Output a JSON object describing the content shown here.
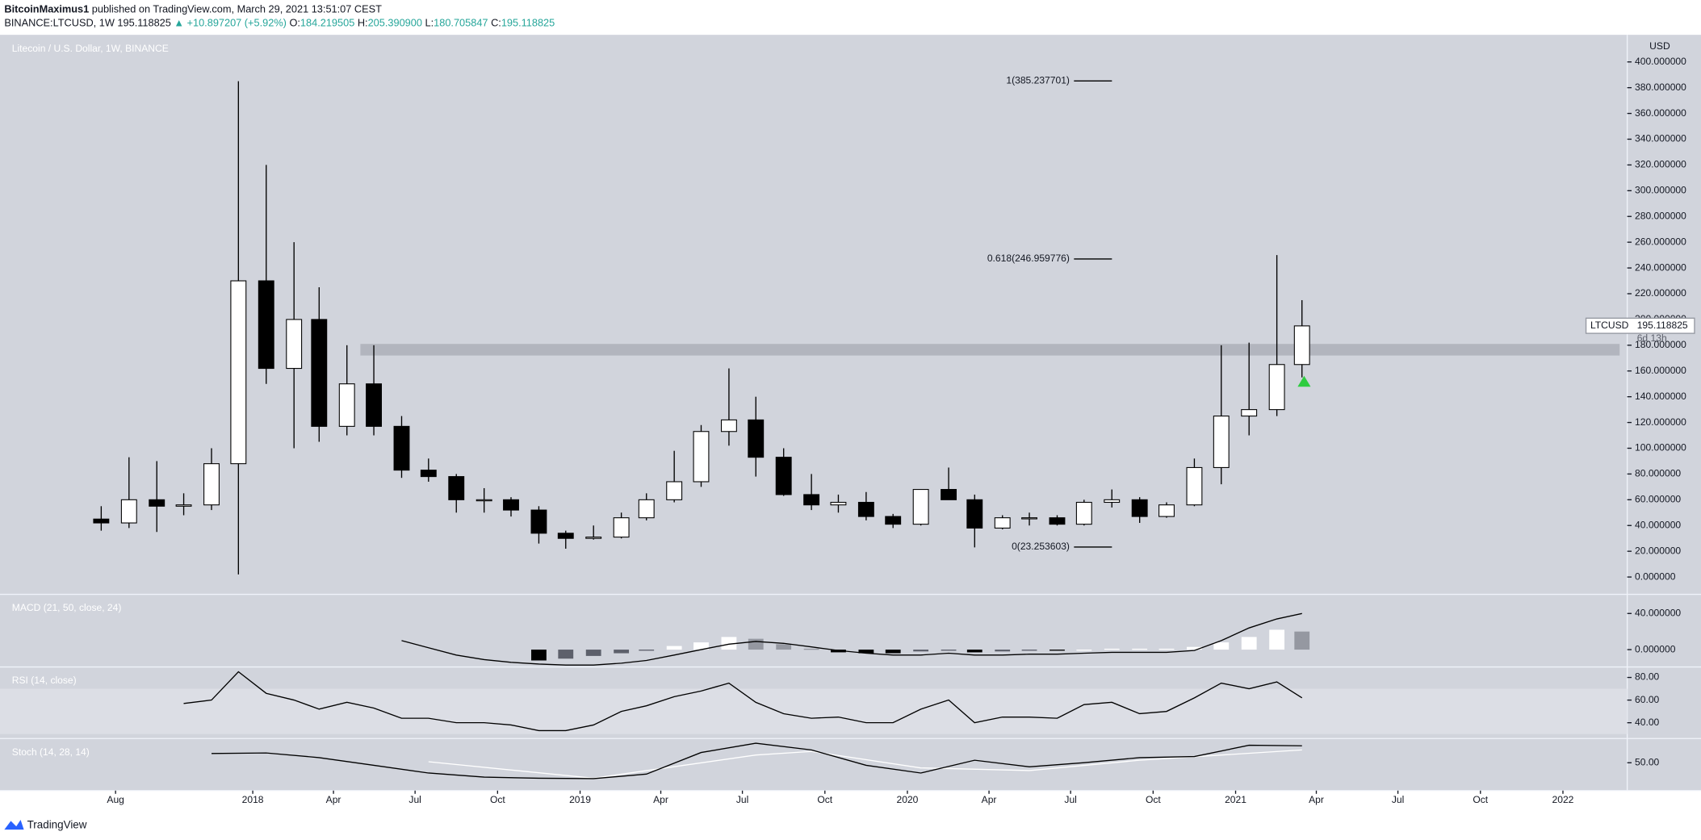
{
  "header": {
    "publisher": "BitcoinMaximus1",
    "published": "published on TradingView.com, March 29, 2021 13:51:07 CEST",
    "symbol": "BINANCE:LTCUSD, 1W",
    "last": "195.118825",
    "change": "▲ +10.897207 (+5.92%)",
    "ohlc": [
      {
        "label": "O:",
        "value": "184.219505"
      },
      {
        "label": "H:",
        "value": "205.390900"
      },
      {
        "label": "L:",
        "value": "180.705847"
      },
      {
        "label": "C:",
        "value": "195.118825"
      }
    ]
  },
  "footer": {
    "brand": "TradingView"
  },
  "chart_data": {
    "type": "candlestick",
    "title": "Litecoin / U.S. Dollar, 1W, BINANCE",
    "unit": "USD",
    "x": [
      "2017-07",
      "2017-08",
      "2017-09",
      "2017-10",
      "2017-11",
      "2017-12",
      "2018-01",
      "2018-02",
      "2018-03",
      "2018-04",
      "2018-05",
      "2018-06",
      "2018-07",
      "2018-08",
      "2018-09",
      "2018-10",
      "2018-11",
      "2018-12",
      "2019-01",
      "2019-02",
      "2019-03",
      "2019-04",
      "2019-05",
      "2019-06",
      "2019-07",
      "2019-08",
      "2019-09",
      "2019-10",
      "2019-11",
      "2019-12",
      "2020-01",
      "2020-02",
      "2020-03",
      "2020-04",
      "2020-05",
      "2020-06",
      "2020-07",
      "2020-08",
      "2020-09",
      "2020-10",
      "2020-11",
      "2020-12",
      "2021-01",
      "2021-02",
      "2021-03"
    ],
    "open": [
      45,
      42,
      60,
      55,
      56,
      88,
      230,
      162,
      200,
      117,
      150,
      117,
      83,
      78,
      60,
      60,
      52,
      34,
      30,
      31,
      46,
      60,
      74,
      113,
      122,
      93,
      64,
      56,
      58,
      47,
      41,
      68,
      60,
      38,
      46,
      46,
      41,
      58,
      60,
      47,
      56,
      85,
      125,
      130,
      165
    ],
    "high": [
      55,
      93,
      90,
      65,
      100,
      385,
      320,
      260,
      225,
      180,
      180,
      125,
      92,
      80,
      69,
      62,
      55,
      36,
      40,
      50,
      65,
      98,
      118,
      162,
      140,
      100,
      80,
      64,
      66,
      49,
      68,
      85,
      64,
      48,
      50,
      48,
      60,
      68,
      62,
      58,
      92,
      180,
      182,
      250,
      215
    ],
    "low": [
      36,
      38,
      35,
      48,
      52,
      2,
      150,
      100,
      105,
      110,
      110,
      77,
      74,
      50,
      50,
      47,
      26,
      22,
      29,
      30,
      44,
      58,
      70,
      102,
      78,
      63,
      52,
      50,
      44,
      38,
      40,
      60,
      23,
      37,
      40,
      40,
      40,
      54,
      42,
      46,
      55,
      72,
      110,
      125,
      155
    ],
    "close": [
      42,
      60,
      55,
      56,
      88,
      230,
      162,
      200,
      117,
      150,
      117,
      83,
      78,
      60,
      60,
      52,
      34,
      30,
      31,
      46,
      60,
      74,
      113,
      122,
      93,
      64,
      56,
      58,
      47,
      41,
      68,
      60,
      38,
      46,
      46,
      41,
      58,
      60,
      47,
      56,
      85,
      125,
      130,
      165,
      195
    ],
    "colors": {
      "up": "#ffffff",
      "down": "#000000",
      "wick": "#000000"
    },
    "ylim": [
      -12.6,
      420.2
    ],
    "yticks": [
      {
        "value": 0,
        "label": "0.000000"
      },
      {
        "value": 20,
        "label": "20.000000"
      },
      {
        "value": 40,
        "label": "40.000000"
      },
      {
        "value": 60,
        "label": "60.000000"
      },
      {
        "value": 80,
        "label": "80.000000"
      },
      {
        "value": 100,
        "label": "100.000000"
      },
      {
        "value": 120,
        "label": "120.000000"
      },
      {
        "value": 140,
        "label": "140.000000"
      },
      {
        "value": 160,
        "label": "160.000000"
      },
      {
        "value": 180,
        "label": "180.000000"
      },
      {
        "value": 200,
        "label": "200.000000"
      },
      {
        "value": 220,
        "label": "220.000000"
      },
      {
        "value": 240,
        "label": "240.000000"
      },
      {
        "value": 260,
        "label": "260.000000"
      },
      {
        "value": 280,
        "label": "280.000000"
      },
      {
        "value": 300,
        "label": "300.000000"
      },
      {
        "value": 320,
        "label": "320.000000"
      },
      {
        "value": 340,
        "label": "340.000000"
      },
      {
        "value": 360,
        "label": "360.000000"
      },
      {
        "value": 380,
        "label": "380.000000"
      },
      {
        "value": 400,
        "label": "400.000000"
      }
    ],
    "xticks": [
      {
        "value": "2017-08",
        "label": "Aug"
      },
      {
        "value": "2018-01",
        "label": "2018"
      },
      {
        "value": "2018-04",
        "label": "Apr"
      },
      {
        "value": "2018-07",
        "label": "Jul"
      },
      {
        "value": "2018-10",
        "label": "Oct"
      },
      {
        "value": "2019-01",
        "label": "2019"
      },
      {
        "value": "2019-04",
        "label": "Apr"
      },
      {
        "value": "2019-07",
        "label": "Jul"
      },
      {
        "value": "2019-10",
        "label": "Oct"
      },
      {
        "value": "2020-01",
        "label": "2020"
      },
      {
        "value": "2020-04",
        "label": "Apr"
      },
      {
        "value": "2020-07",
        "label": "Jul"
      },
      {
        "value": "2020-10",
        "label": "Oct"
      },
      {
        "value": "2021-01",
        "label": "2021"
      },
      {
        "value": "2021-04",
        "label": "Apr"
      },
      {
        "value": "2021-07",
        "label": "Jul"
      },
      {
        "value": "2021-10",
        "label": "Oct"
      },
      {
        "value": "2022-01",
        "label": "2022"
      }
    ],
    "zone": {
      "from": "2018-05",
      "low": 172,
      "high": 181,
      "color": "#b2b5be"
    },
    "fib": [
      {
        "label": "1(385.237701)",
        "value": 385.237701
      },
      {
        "label": "0.618(246.959776)",
        "value": 246.959776
      },
      {
        "label": "0(23.253603)",
        "value": 23.253603
      }
    ],
    "marker": {
      "x": "2021-03",
      "value": 152,
      "color": "#2ecc40"
    },
    "price_tag": {
      "symbol": "LTCUSD",
      "value": 195.118825,
      "label": "195.118825",
      "countdown": "6d 13h"
    },
    "indicators": [
      {
        "title": "MACD (21, 50, close, 24)",
        "ylim": [
          -18,
          60
        ],
        "yticks": [
          {
            "value": 40,
            "label": "40.000000"
          },
          {
            "value": 0,
            "label": "0.000000"
          }
        ],
        "series": [
          {
            "style": "histogram",
            "colors": {
              "pos_up": "#ffffff",
              "pos_down": "#9598a1",
              "neg_down": "#000000",
              "neg_up": "#5d606b"
            },
            "x": [
              "2018-11",
              "2018-12",
              "2019-01",
              "2019-02",
              "2019-03",
              "2019-04",
              "2019-05",
              "2019-06",
              "2019-07",
              "2019-08",
              "2019-09",
              "2019-10",
              "2019-11",
              "2019-12",
              "2020-01",
              "2020-02",
              "2020-03",
              "2020-04",
              "2020-05",
              "2020-06",
              "2020-07",
              "2020-08",
              "2020-09",
              "2020-10",
              "2020-11",
              "2020-12",
              "2021-01",
              "2021-02",
              "2021-03"
            ],
            "values": [
              -12,
              -10,
              -7,
              -4,
              -1,
              4,
              8,
              14,
              12,
              6,
              1,
              -3,
              -4,
              -4,
              -2,
              -1,
              -3,
              -2,
              -1,
              -1,
              0,
              1,
              1,
              1,
              3,
              8,
              14,
              22,
              20
            ]
          },
          {
            "style": "line",
            "color": "#000000",
            "x": [
              "2018-06",
              "2018-07",
              "2018-08",
              "2018-09",
              "2018-10",
              "2018-11",
              "2018-12",
              "2019-01",
              "2019-02",
              "2019-03",
              "2019-04",
              "2019-05",
              "2019-06",
              "2019-07",
              "2019-08",
              "2019-09",
              "2019-10",
              "2019-11",
              "2019-12",
              "2020-01",
              "2020-02",
              "2020-03",
              "2020-04",
              "2020-05",
              "2020-06",
              "2020-07",
              "2020-08",
              "2020-09",
              "2020-10",
              "2020-11",
              "2020-12",
              "2021-01",
              "2021-02",
              "2021-03"
            ],
            "values": [
              10,
              2,
              -6,
              -11,
              -14,
              -16,
              -17,
              -17,
              -15,
              -12,
              -6,
              0,
              6,
              9,
              7,
              3,
              -1,
              -4,
              -6,
              -6,
              -4,
              -6,
              -6,
              -5,
              -5,
              -4,
              -3,
              -3,
              -3,
              -1,
              10,
              24,
              34,
              40
            ]
          }
        ]
      },
      {
        "title": "RSI (14, close)",
        "ylim": [
          27,
          88.3
        ],
        "band": [
          30,
          70
        ],
        "yticks": [
          {
            "value": 80,
            "label": "80.00"
          },
          {
            "value": 60,
            "label": "60.00"
          },
          {
            "value": 40,
            "label": "40.00"
          }
        ],
        "series": [
          {
            "style": "line",
            "color": "#000000",
            "x": [
              "2017-10",
              "2017-11",
              "2017-12",
              "2018-01",
              "2018-02",
              "2018-03",
              "2018-04",
              "2018-05",
              "2018-06",
              "2018-07",
              "2018-08",
              "2018-09",
              "2018-10",
              "2018-11",
              "2018-12",
              "2019-01",
              "2019-02",
              "2019-03",
              "2019-04",
              "2019-05",
              "2019-06",
              "2019-07",
              "2019-08",
              "2019-09",
              "2019-10",
              "2019-11",
              "2019-12",
              "2020-01",
              "2020-02",
              "2020-03",
              "2020-04",
              "2020-05",
              "2020-06",
              "2020-07",
              "2020-08",
              "2020-09",
              "2020-10",
              "2020-11",
              "2020-12",
              "2021-01",
              "2021-02",
              "2021-03"
            ],
            "values": [
              57,
              60,
              85,
              66,
              60,
              52,
              58,
              53,
              44,
              44,
              40,
              40,
              38,
              33,
              33,
              38,
              50,
              55,
              63,
              68,
              75,
              58,
              48,
              44,
              45,
              40,
              40,
              52,
              60,
              40,
              45,
              45,
              44,
              56,
              58,
              48,
              50,
              62,
              75,
              70,
              76,
              62
            ]
          }
        ]
      },
      {
        "title": "Stoch (14, 28, 14)",
        "ylim": [
          -2,
          95
        ],
        "yticks": [
          {
            "value": 50,
            "label": "50.00"
          }
        ],
        "series": [
          {
            "style": "line",
            "color": "#ffffff",
            "x": [
              "2018-07",
              "2019-01",
              "2019-07",
              "2019-09",
              "2020-01",
              "2020-05",
              "2020-09",
              "2021-03"
            ],
            "values": [
              52,
              20,
              65,
              72,
              40,
              35,
              55,
              75
            ]
          },
          {
            "style": "line",
            "color": "#000000",
            "x": [
              "2017-11",
              "2018-01",
              "2018-03",
              "2018-05",
              "2018-07",
              "2018-09",
              "2018-11",
              "2019-01",
              "2019-03",
              "2019-05",
              "2019-07",
              "2019-09",
              "2019-11",
              "2020-01",
              "2020-03",
              "2020-05",
              "2020-07",
              "2020-09",
              "2020-11",
              "2021-01",
              "2021-03"
            ],
            "values": [
              68,
              69,
              60,
              45,
              30,
              22,
              20,
              19,
              28,
              70,
              88,
              75,
              45,
              30,
              55,
              42,
              50,
              60,
              62,
              84,
              83
            ]
          }
        ]
      }
    ]
  }
}
